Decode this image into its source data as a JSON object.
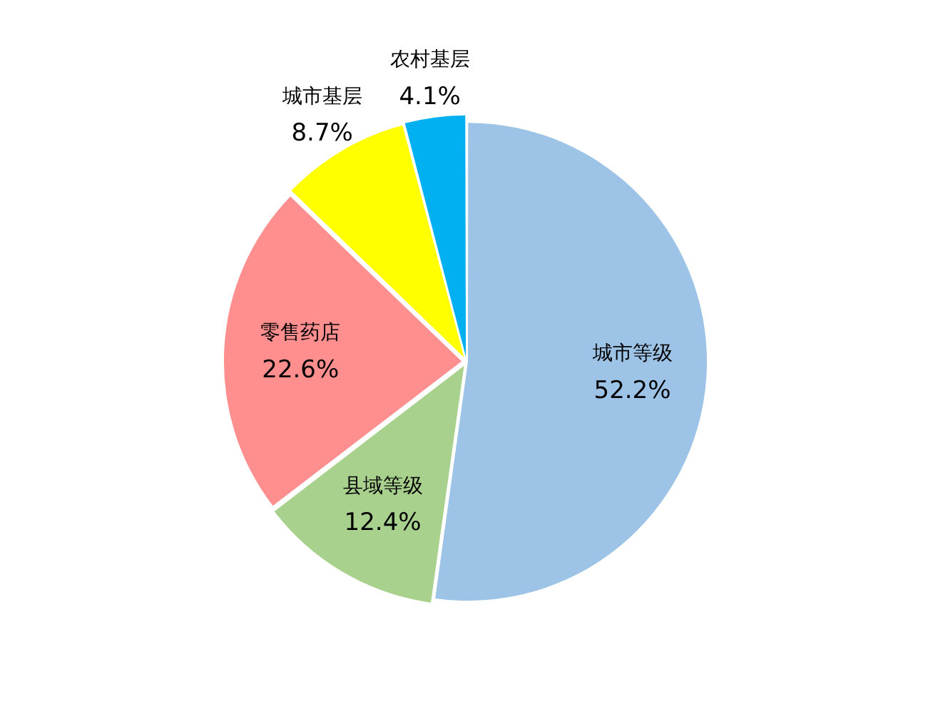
{
  "chart_data": {
    "type": "pie",
    "categories": [
      "城市等级",
      "县域等级",
      "零售药店",
      "城市基层",
      "农村基层"
    ],
    "values": [
      52.2,
      12.4,
      22.6,
      8.7,
      4.1
    ],
    "colors": [
      "#9dc3e6",
      "#a9d18e",
      "#ff8f8f",
      "#ffff00",
      "#00b0f0"
    ],
    "value_labels": [
      "52.2%",
      "12.4%",
      "22.6%",
      "8.7%",
      "4.1%"
    ]
  }
}
